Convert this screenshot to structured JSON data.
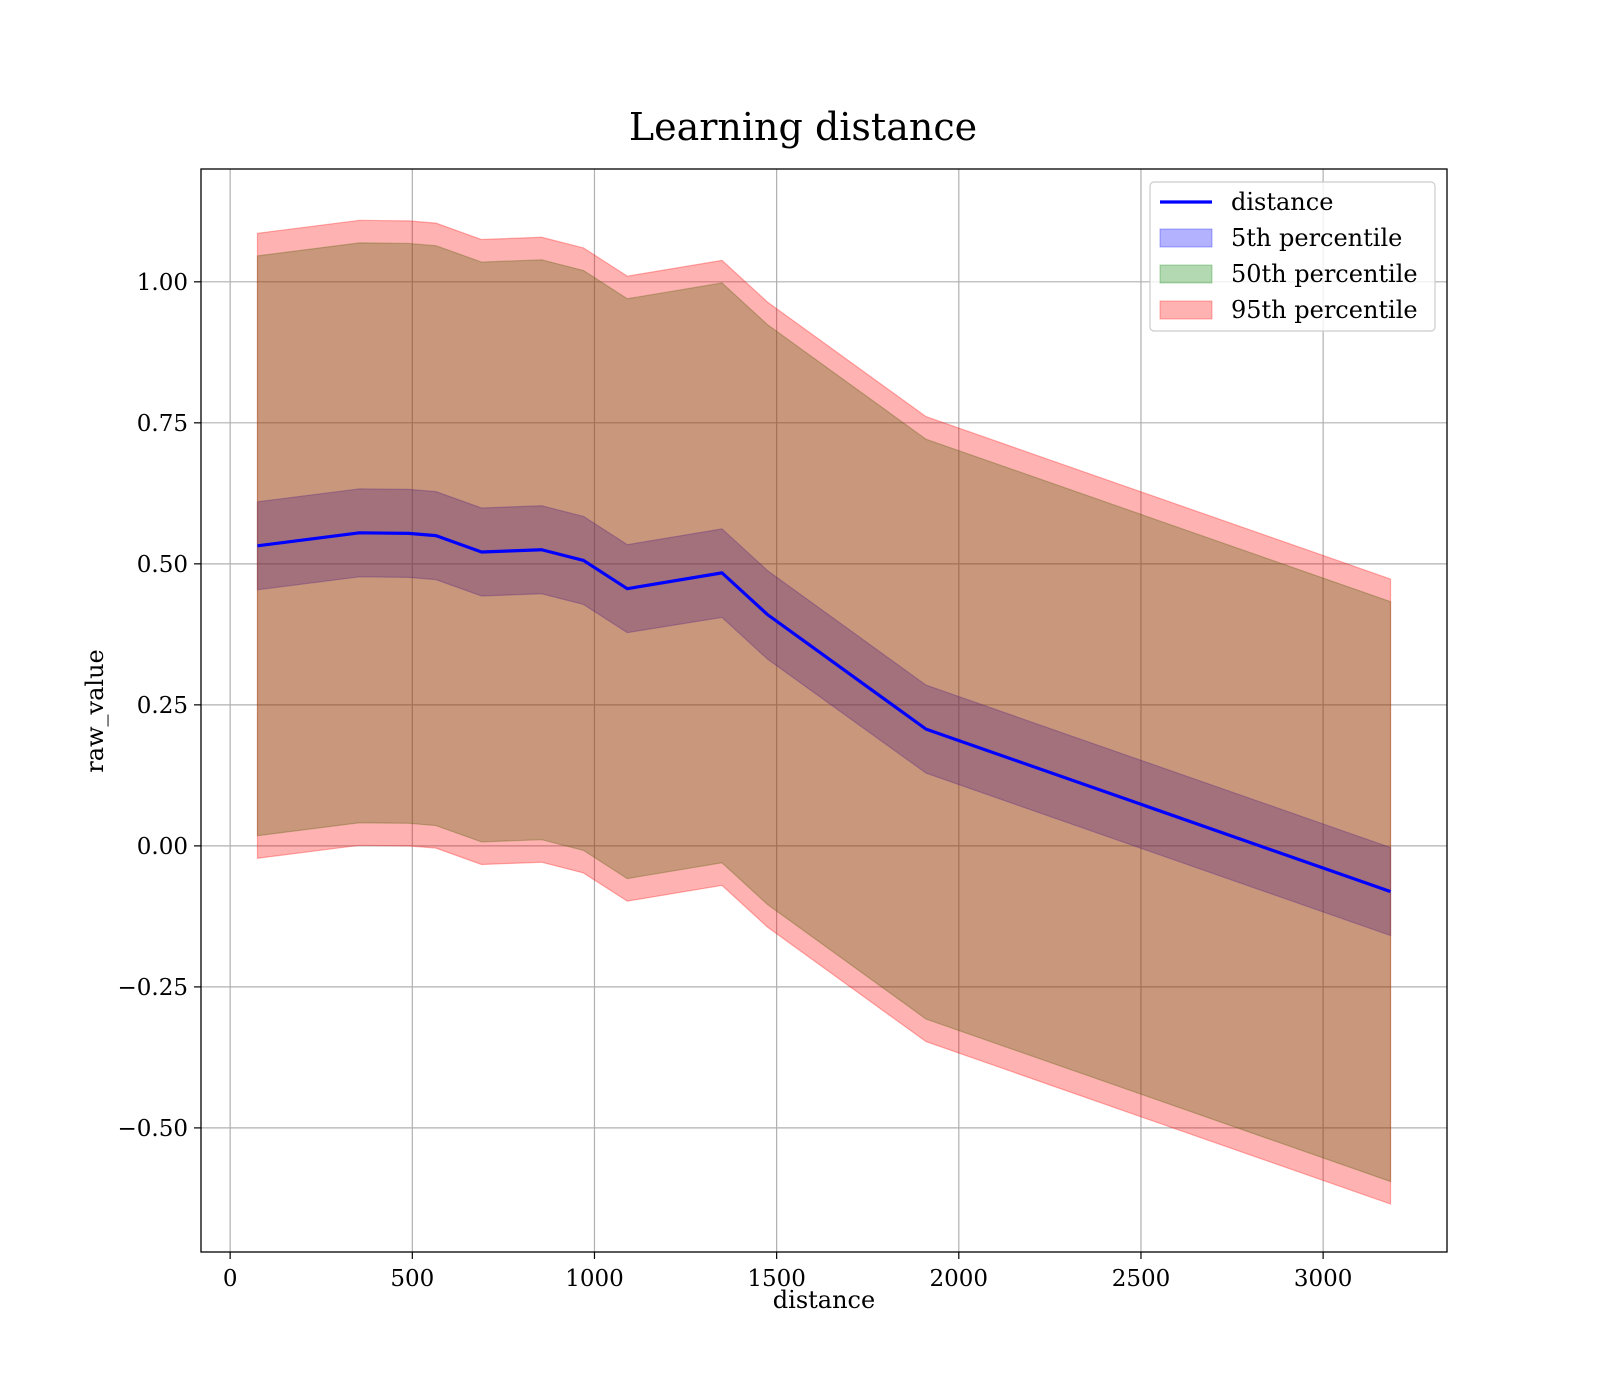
{
  "chart_data": {
    "type": "area",
    "title": "Learning distance",
    "xlabel": "distance",
    "ylabel": "raw_value",
    "xlim": [
      -80,
      3340
    ],
    "ylim": [
      -0.72,
      1.2
    ],
    "grid": true,
    "legend_position": "top-right",
    "x_ticks": [
      0,
      500,
      1000,
      1500,
      2000,
      2500,
      3000
    ],
    "x_tick_labels": [
      "0",
      "500",
      "1000",
      "1500",
      "2000",
      "2500",
      "3000"
    ],
    "y_ticks": [
      -0.5,
      -0.25,
      0.0,
      0.25,
      0.5,
      0.75,
      1.0
    ],
    "y_tick_labels": [
      "−0.50",
      "−0.25",
      "0.00",
      "0.25",
      "0.50",
      "0.75",
      "1.00"
    ],
    "x": [
      75,
      355,
      490,
      565,
      690,
      855,
      970,
      1090,
      1350,
      1475,
      1910,
      3185
    ],
    "series": [
      {
        "name": "distance",
        "kind": "line",
        "color": "#0000ff",
        "values": [
          0.532,
          0.555,
          0.554,
          0.55,
          0.521,
          0.525,
          0.506,
          0.456,
          0.484,
          0.41,
          0.207,
          -0.081
        ]
      },
      {
        "name": "5th percentile",
        "kind": "band",
        "color": "#0000ff",
        "lower": [
          0.454,
          0.477,
          0.476,
          0.472,
          0.443,
          0.447,
          0.428,
          0.378,
          0.405,
          0.331,
          0.129,
          -0.159
        ],
        "upper": [
          0.61,
          0.633,
          0.632,
          0.628,
          0.599,
          0.603,
          0.584,
          0.534,
          0.562,
          0.488,
          0.285,
          -0.003
        ]
      },
      {
        "name": "50th percentile",
        "kind": "band",
        "color": "#008000",
        "lower": [
          0.018,
          0.041,
          0.04,
          0.036,
          0.007,
          0.011,
          -0.008,
          -0.058,
          -0.03,
          -0.104,
          -0.307,
          -0.595
        ],
        "upper": [
          1.046,
          1.069,
          1.068,
          1.064,
          1.035,
          1.039,
          1.02,
          0.97,
          0.998,
          0.924,
          0.721,
          0.433
        ]
      },
      {
        "name": "95th percentile",
        "kind": "band",
        "color": "#ff0000",
        "lower": [
          -0.022,
          0.001,
          0.0,
          -0.004,
          -0.033,
          -0.029,
          -0.048,
          -0.098,
          -0.07,
          -0.144,
          -0.347,
          -0.635
        ],
        "upper": [
          1.086,
          1.109,
          1.108,
          1.104,
          1.075,
          1.079,
          1.06,
          1.01,
          1.038,
          0.964,
          0.761,
          0.473
        ]
      }
    ]
  }
}
